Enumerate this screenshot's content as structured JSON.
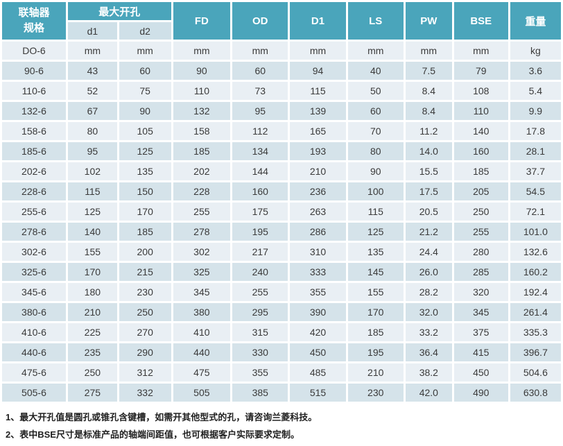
{
  "table": {
    "header": {
      "model_line1": "联轴器",
      "model_line2": "规格",
      "max_bore_label": "最大开孔",
      "sub_cols": [
        "d1",
        "d2"
      ],
      "columns": [
        "FD",
        "OD",
        "D1",
        "LS",
        "PW",
        "BSE",
        "重量"
      ]
    },
    "unit_row": [
      "DO-6",
      "mm",
      "mm",
      "mm",
      "mm",
      "mm",
      "mm",
      "mm",
      "mm",
      "kg"
    ],
    "rows": [
      [
        "90-6",
        "43",
        "60",
        "90",
        "60",
        "94",
        "40",
        "7.5",
        "79",
        "3.6"
      ],
      [
        "110-6",
        "52",
        "75",
        "110",
        "73",
        "115",
        "50",
        "8.4",
        "108",
        "5.4"
      ],
      [
        "132-6",
        "67",
        "90",
        "132",
        "95",
        "139",
        "60",
        "8.4",
        "110",
        "9.9"
      ],
      [
        "158-6",
        "80",
        "105",
        "158",
        "112",
        "165",
        "70",
        "11.2",
        "140",
        "17.8"
      ],
      [
        "185-6",
        "95",
        "125",
        "185",
        "134",
        "193",
        "80",
        "14.0",
        "160",
        "28.1"
      ],
      [
        "202-6",
        "102",
        "135",
        "202",
        "144",
        "210",
        "90",
        "15.5",
        "185",
        "37.7"
      ],
      [
        "228-6",
        "115",
        "150",
        "228",
        "160",
        "236",
        "100",
        "17.5",
        "205",
        "54.5"
      ],
      [
        "255-6",
        "125",
        "170",
        "255",
        "175",
        "263",
        "115",
        "20.5",
        "250",
        "72.1"
      ],
      [
        "278-6",
        "140",
        "185",
        "278",
        "195",
        "286",
        "125",
        "21.2",
        "255",
        "101.0"
      ],
      [
        "302-6",
        "155",
        "200",
        "302",
        "217",
        "310",
        "135",
        "24.4",
        "280",
        "132.6"
      ],
      [
        "325-6",
        "170",
        "215",
        "325",
        "240",
        "333",
        "145",
        "26.0",
        "285",
        "160.2"
      ],
      [
        "345-6",
        "180",
        "230",
        "345",
        "255",
        "355",
        "155",
        "28.2",
        "320",
        "192.4"
      ],
      [
        "380-6",
        "210",
        "250",
        "380",
        "295",
        "390",
        "170",
        "32.0",
        "345",
        "261.4"
      ],
      [
        "410-6",
        "225",
        "270",
        "410",
        "315",
        "420",
        "185",
        "33.2",
        "375",
        "335.3"
      ],
      [
        "440-6",
        "235",
        "290",
        "440",
        "330",
        "450",
        "195",
        "36.4",
        "415",
        "396.7"
      ],
      [
        "475-6",
        "250",
        "312",
        "475",
        "355",
        "485",
        "210",
        "38.2",
        "450",
        "504.6"
      ],
      [
        "505-6",
        "275",
        "332",
        "505",
        "385",
        "515",
        "230",
        "42.0",
        "490",
        "630.8"
      ]
    ]
  },
  "notes": [
    "1、最大开孔值是圆孔或锥孔含键槽，如需开其他型式的孔，请咨询兰菱科技。",
    "2、表中BSE尺寸是标准产品的轴端间距值，也可根据客户实际要求定制。"
  ],
  "colors": {
    "header_teal": "#4AA5BB",
    "subheader_bg": "#CFE0E8",
    "row_light": "#E9EFF4",
    "row_dark": "#D5E3EA",
    "text_dark": "#3A3A3A",
    "header_text": "#FFFFFF",
    "cell_border": "#FFFFFF"
  }
}
